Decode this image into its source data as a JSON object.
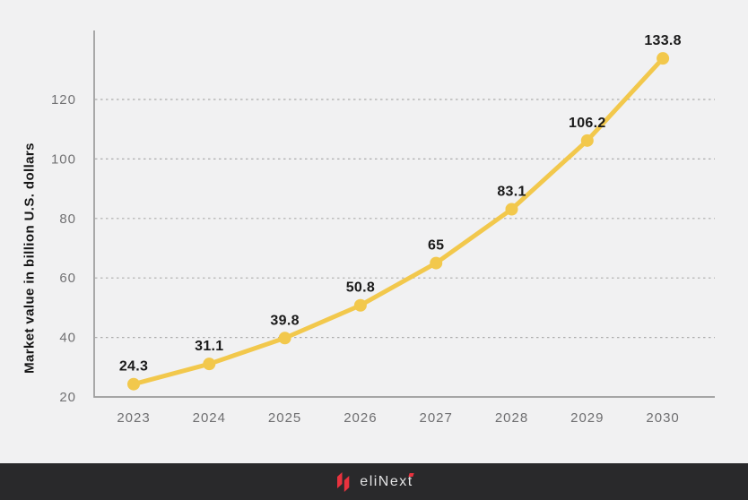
{
  "chart_data": {
    "type": "line",
    "categories": [
      "2023",
      "2024",
      "2025",
      "2026",
      "2027",
      "2028",
      "2029",
      "2030"
    ],
    "series": [
      {
        "name": "Market value",
        "values": [
          24.3,
          31.1,
          39.8,
          50.8,
          65,
          83.1,
          106.2,
          133.8
        ]
      }
    ],
    "data_labels": [
      "24.3",
      "31.1",
      "39.8",
      "50.8",
      "65",
      "83.1",
      "106.2",
      "133.8"
    ],
    "xlabel": "",
    "ylabel": "Market value in billion U.S. dollars",
    "yticks": [
      20,
      40,
      60,
      80,
      100,
      120
    ],
    "ylim": [
      20,
      143
    ],
    "grid": "horizontal-dotted",
    "legend": "none",
    "colors": {
      "line": "#F2C84C",
      "marker": "#F2C84C",
      "data_label": "#1A1A1A",
      "axis": "#9B9B9B",
      "gridline": "#ADADAD",
      "tick_text": "#717173",
      "year_text": "#6E6E70",
      "background": "#F1F1F2"
    }
  },
  "footer": {
    "brand": "eliNext",
    "background": "#29292B",
    "logo_color": "#E8323E",
    "text_color": "#E3E3E4"
  }
}
